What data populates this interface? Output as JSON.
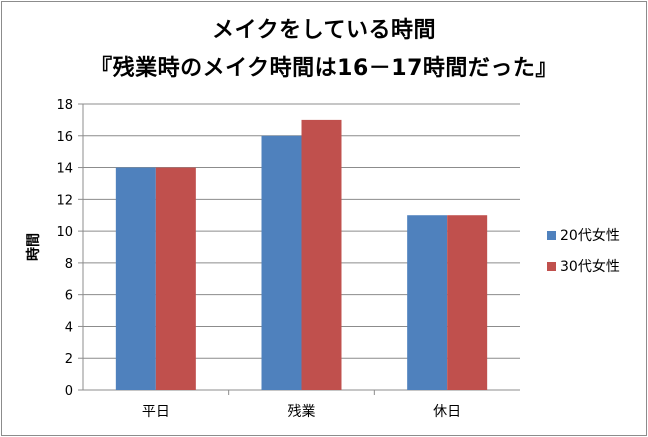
{
  "chart_data": {
    "type": "bar",
    "title_line1": "メイクをしている時間",
    "title_line2": "『残業時のメイク時間は16－17時間だった』",
    "xlabel": "",
    "ylabel": "時間",
    "ylim": [
      0,
      18
    ],
    "yticks": [
      0,
      2,
      4,
      6,
      8,
      10,
      12,
      14,
      16,
      18
    ],
    "categories": [
      "平日",
      "残業",
      "休日"
    ],
    "series": [
      {
        "name": "20代女性",
        "values": [
          14,
          16,
          11
        ],
        "color": "#4f81bd"
      },
      {
        "name": "30代女性",
        "values": [
          14,
          17,
          11
        ],
        "color": "#c0504d"
      }
    ],
    "grid": true,
    "legend": "right"
  }
}
